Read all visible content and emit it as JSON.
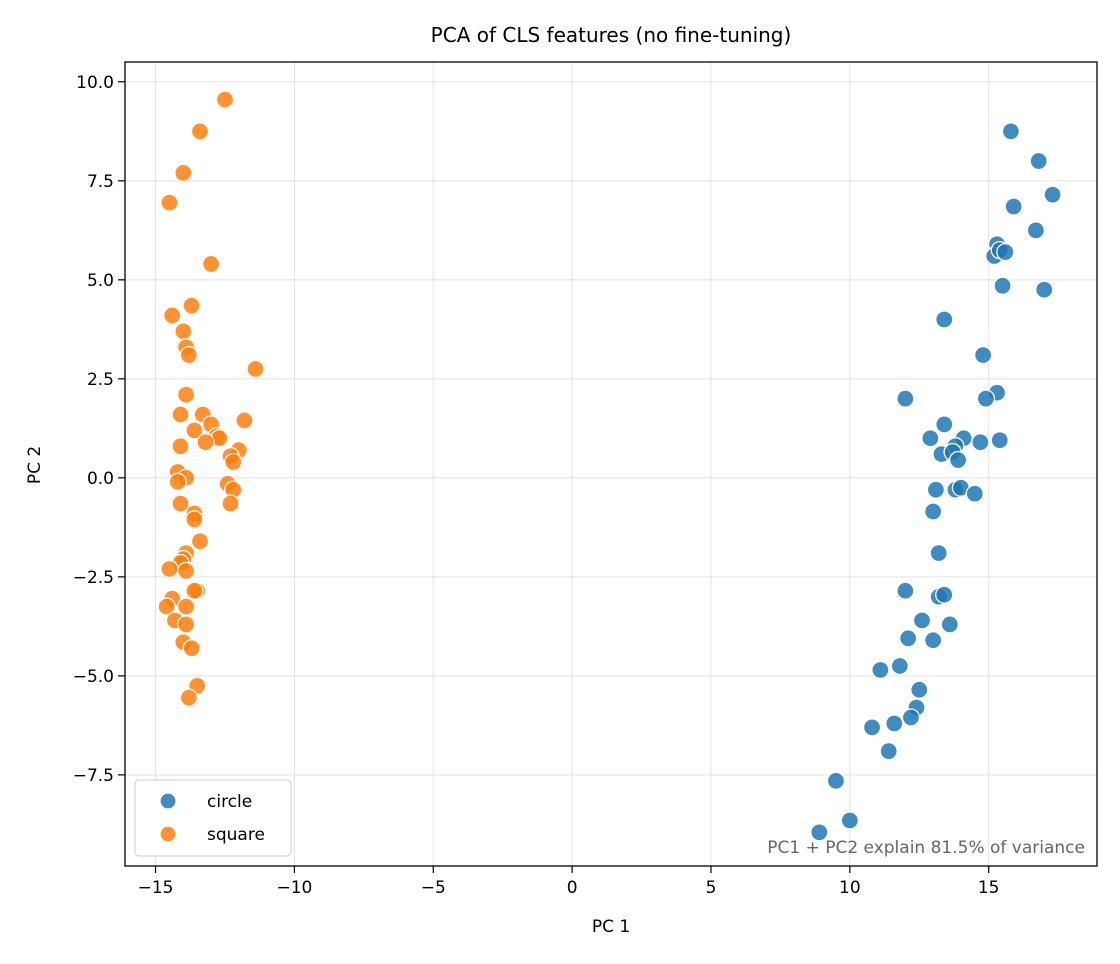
{
  "chart_data": {
    "type": "scatter",
    "title": "PCA of CLS features  (no fine-tuning)",
    "xlabel": "PC 1",
    "ylabel": "PC 2",
    "xlim": [
      -16.1,
      18.9
    ],
    "ylim": [
      -9.8,
      10.5
    ],
    "xticks": [
      -15,
      -10,
      -5,
      0,
      5,
      10,
      15
    ],
    "xtick_labels": [
      "−15",
      "−10",
      "−5",
      "0",
      "5",
      "10",
      "15"
    ],
    "yticks": [
      -7.5,
      -5.0,
      -2.5,
      0.0,
      2.5,
      5.0,
      7.5,
      10.0
    ],
    "ytick_labels": [
      "−7.5",
      "−5.0",
      "−2.5",
      "0.0",
      "2.5",
      "5.0",
      "7.5",
      "10.0"
    ],
    "grid": true,
    "legend_position": "lower-left",
    "annotation": "PC1 + PC2 explain  81.5%  of variance",
    "series": [
      {
        "name": "circle",
        "color": "#1f77b4",
        "points": [
          [
            15.8,
            8.75
          ],
          [
            16.8,
            8.0
          ],
          [
            17.3,
            7.15
          ],
          [
            15.9,
            6.85
          ],
          [
            16.7,
            6.25
          ],
          [
            15.3,
            5.9
          ],
          [
            15.2,
            5.6
          ],
          [
            15.4,
            5.75
          ],
          [
            15.6,
            5.7
          ],
          [
            15.5,
            4.85
          ],
          [
            17.0,
            4.75
          ],
          [
            13.4,
            4.0
          ],
          [
            14.8,
            3.1
          ],
          [
            15.3,
            2.15
          ],
          [
            14.9,
            2.0
          ],
          [
            12.0,
            2.0
          ],
          [
            13.4,
            1.35
          ],
          [
            12.9,
            1.0
          ],
          [
            14.1,
            1.0
          ],
          [
            13.8,
            0.8
          ],
          [
            14.7,
            0.9
          ],
          [
            15.4,
            0.95
          ],
          [
            13.3,
            0.6
          ],
          [
            13.7,
            0.65
          ],
          [
            13.9,
            0.45
          ],
          [
            13.8,
            -0.3
          ],
          [
            14.0,
            -0.25
          ],
          [
            13.1,
            -0.3
          ],
          [
            14.5,
            -0.4
          ],
          [
            13.0,
            -0.85
          ],
          [
            13.2,
            -1.9
          ],
          [
            12.0,
            -2.85
          ],
          [
            13.2,
            -3.0
          ],
          [
            13.4,
            -2.95
          ],
          [
            12.6,
            -3.6
          ],
          [
            13.6,
            -3.7
          ],
          [
            12.1,
            -4.05
          ],
          [
            13.0,
            -4.1
          ],
          [
            11.1,
            -4.85
          ],
          [
            11.8,
            -4.75
          ],
          [
            12.5,
            -5.35
          ],
          [
            12.4,
            -5.8
          ],
          [
            12.2,
            -6.05
          ],
          [
            10.8,
            -6.3
          ],
          [
            11.6,
            -6.2
          ],
          [
            11.4,
            -6.9
          ],
          [
            9.5,
            -7.65
          ],
          [
            10.0,
            -8.65
          ],
          [
            8.9,
            -8.95
          ]
        ]
      },
      {
        "name": "square",
        "color": "#ff7f0e",
        "points": [
          [
            -12.5,
            9.55
          ],
          [
            -13.4,
            8.75
          ],
          [
            -14.0,
            7.7
          ],
          [
            -14.5,
            6.95
          ],
          [
            -13.0,
            5.4
          ],
          [
            -13.7,
            4.35
          ],
          [
            -14.4,
            4.1
          ],
          [
            -14.0,
            3.7
          ],
          [
            -13.9,
            3.3
          ],
          [
            -13.8,
            3.1
          ],
          [
            -11.4,
            2.75
          ],
          [
            -13.9,
            2.1
          ],
          [
            -14.1,
            1.6
          ],
          [
            -13.3,
            1.6
          ],
          [
            -13.0,
            1.35
          ],
          [
            -11.8,
            1.45
          ],
          [
            -13.6,
            1.2
          ],
          [
            -12.8,
            1.05
          ],
          [
            -12.7,
            1.0
          ],
          [
            -13.2,
            0.9
          ],
          [
            -14.1,
            0.8
          ],
          [
            -12.0,
            0.7
          ],
          [
            -12.3,
            0.55
          ],
          [
            -12.2,
            0.4
          ],
          [
            -14.2,
            0.15
          ],
          [
            -13.9,
            0.0
          ],
          [
            -14.2,
            -0.1
          ],
          [
            -12.4,
            -0.15
          ],
          [
            -12.2,
            -0.3
          ],
          [
            -14.1,
            -0.65
          ],
          [
            -12.3,
            -0.65
          ],
          [
            -13.6,
            -0.9
          ],
          [
            -13.6,
            -1.05
          ],
          [
            -13.4,
            -1.6
          ],
          [
            -13.9,
            -1.9
          ],
          [
            -14.0,
            -2.05
          ],
          [
            -14.1,
            -2.15
          ],
          [
            -13.9,
            -2.35
          ],
          [
            -14.5,
            -2.3
          ],
          [
            -13.5,
            -2.85
          ],
          [
            -13.6,
            -2.85
          ],
          [
            -14.4,
            -3.05
          ],
          [
            -13.9,
            -3.25
          ],
          [
            -14.6,
            -3.25
          ],
          [
            -14.3,
            -3.6
          ],
          [
            -13.9,
            -3.7
          ],
          [
            -14.0,
            -4.15
          ],
          [
            -13.7,
            -4.3
          ],
          [
            -13.5,
            -5.25
          ],
          [
            -13.8,
            -5.55
          ]
        ]
      }
    ]
  }
}
